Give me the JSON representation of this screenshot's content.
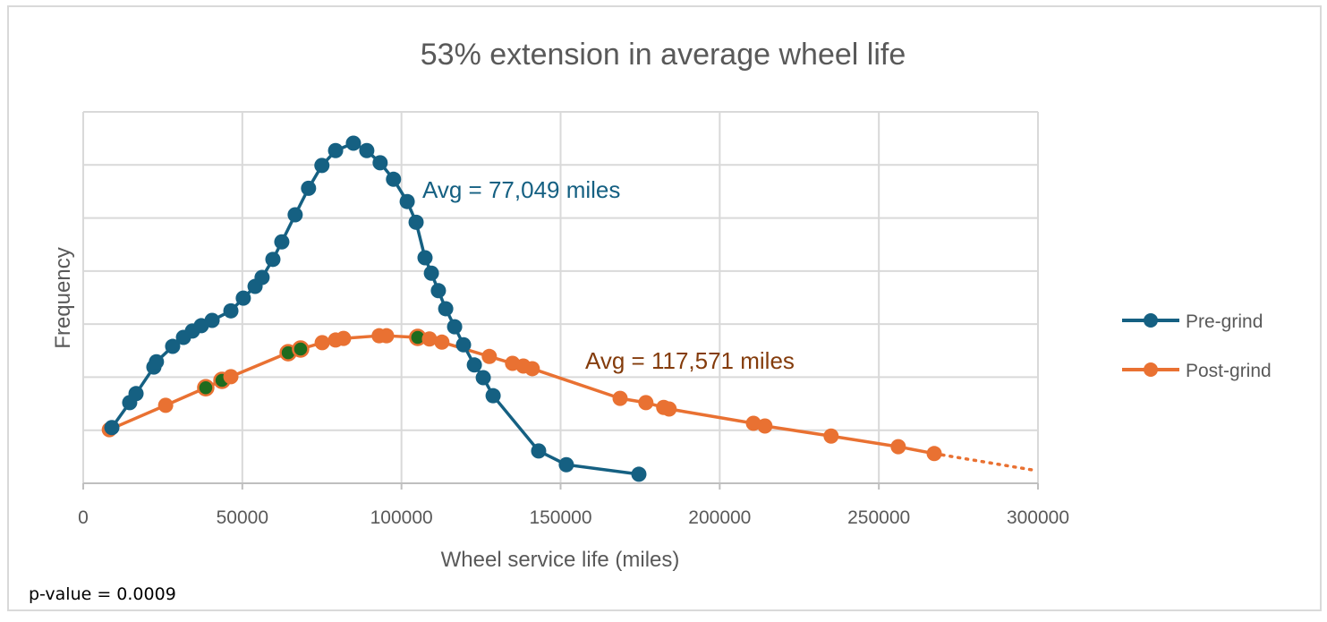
{
  "chart_data": {
    "type": "line",
    "title": "53% extension in average wheel life",
    "xlabel": "Wheel service life (miles)",
    "ylabel": "Frequency",
    "xlim": [
      0,
      300000
    ],
    "ylim": [
      0,
      7
    ],
    "x_ticks": [
      "0",
      "50000",
      "100000",
      "150000",
      "200000",
      "250000",
      "300000"
    ],
    "x_tick_values": [
      0,
      50000,
      100000,
      150000,
      200000,
      250000,
      300000
    ],
    "y_gridlines": [
      1,
      2,
      3,
      4,
      5,
      6,
      7
    ],
    "y_tick_labels_shown": false,
    "grid": true,
    "legend_position": "right",
    "series": [
      {
        "name": "Pre-grind",
        "color": "#156082",
        "x": [
          9000,
          14600,
          16600,
          22200,
          23000,
          28100,
          31500,
          34300,
          37100,
          40500,
          46400,
          50300,
          54000,
          56200,
          59600,
          62400,
          66600,
          70800,
          75000,
          79300,
          84900,
          89100,
          93300,
          97500,
          101800,
          104600,
          107400,
          109400,
          111600,
          113900,
          116700,
          119500,
          122900,
          125700,
          128800,
          143100,
          151800,
          174600
        ],
        "y": [
          1.05,
          1.52,
          1.69,
          2.19,
          2.29,
          2.58,
          2.75,
          2.87,
          2.97,
          3.07,
          3.25,
          3.49,
          3.71,
          3.88,
          4.22,
          4.55,
          5.06,
          5.56,
          5.99,
          6.27,
          6.41,
          6.27,
          6.04,
          5.73,
          5.31,
          4.92,
          4.25,
          3.96,
          3.63,
          3.29,
          2.95,
          2.61,
          2.23,
          1.99,
          1.65,
          0.61,
          0.35,
          0.17
        ]
      },
      {
        "name": "Post-grind",
        "color": "#E97132",
        "x": [
          8200,
          25900,
          38500,
          43600,
          46400,
          64400,
          68300,
          75100,
          79300,
          81800,
          93000,
          95300,
          105100,
          108800,
          112700,
          127600,
          134900,
          138300,
          141100,
          168700,
          176800,
          182400,
          184100,
          210600,
          214200,
          235000,
          256100,
          267400
        ],
        "y": [
          1.01,
          1.47,
          1.8,
          1.94,
          2.01,
          2.46,
          2.53,
          2.65,
          2.7,
          2.73,
          2.78,
          2.78,
          2.75,
          2.72,
          2.66,
          2.39,
          2.26,
          2.21,
          2.16,
          1.6,
          1.52,
          1.43,
          1.4,
          1.13,
          1.08,
          0.89,
          0.69,
          0.56
        ],
        "highlighted_points_x": [
          38500,
          43600,
          64400,
          68300,
          105100
        ],
        "highlight_color": "#1E6B1E",
        "trend_extension": {
          "style": "dotted",
          "x": [
            267400,
            299400
          ],
          "y": [
            0.56,
            0.24
          ]
        }
      }
    ],
    "annotations": [
      {
        "text": "Avg = 77,049 miles",
        "series": "Pre-grind",
        "color": "#156082"
      },
      {
        "text": "Avg = 117,571 miles",
        "series": "Post-grind",
        "color": "#843C0C"
      }
    ],
    "footnote": "p-value = 0.0009"
  }
}
